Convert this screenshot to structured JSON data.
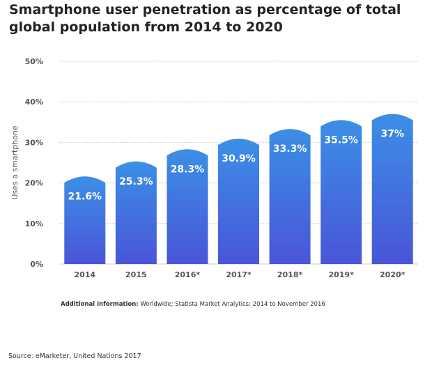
{
  "chart_data": {
    "type": "bar",
    "title": "Smartphone user penetration as percentage of total global population from 2014 to 2020",
    "xlabel": "",
    "ylabel": "Uses a smartphone",
    "categories": [
      "2014",
      "2015",
      "2016*",
      "2017*",
      "2018*",
      "2019*",
      "2020*"
    ],
    "values": [
      21.6,
      25.3,
      28.3,
      30.9,
      33.3,
      35.5,
      37
    ],
    "value_labels": [
      "21.6%",
      "25.3%",
      "28.3%",
      "30.9%",
      "33.3%",
      "35.5%",
      "37%"
    ],
    "ylim": [
      0,
      50
    ],
    "yticks": [
      "0%",
      "10%",
      "20%",
      "30%",
      "40%",
      "50%"
    ],
    "grid": true,
    "bar_color_top": "#3b8fe6",
    "bar_color_bottom": "#4a55d8"
  },
  "notes": {
    "additional_label": "Additional information:",
    "additional_text": " Worldwide; Statista Market Analytics; 2014 to November 2016",
    "source": "Source: eMarketer, United Nations 2017"
  }
}
